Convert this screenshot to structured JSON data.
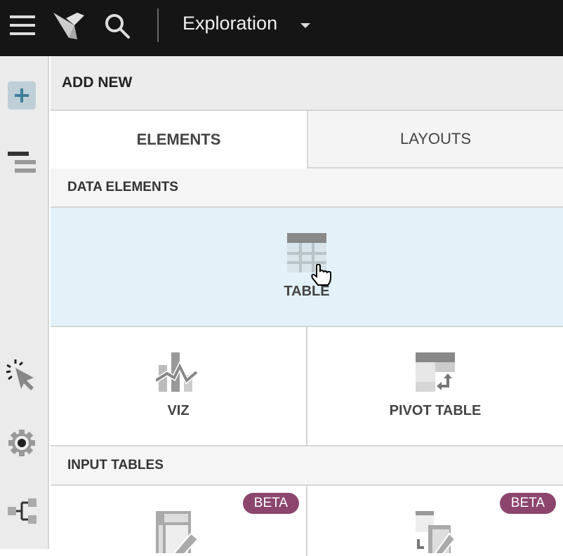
{
  "topbar": {
    "title": "Exploration"
  },
  "panel": {
    "header": "ADD NEW",
    "tabs": [
      {
        "label": "ELEMENTS",
        "active": true
      },
      {
        "label": "LAYOUTS",
        "active": false
      }
    ],
    "sections": [
      {
        "title": "DATA ELEMENTS",
        "items": [
          {
            "label": "TABLE",
            "icon": "table-icon",
            "hovered": true
          },
          {
            "label": "VIZ",
            "icon": "viz-icon"
          },
          {
            "label": "PIVOT TABLE",
            "icon": "pivot-table-icon"
          }
        ]
      },
      {
        "title": "INPUT TABLES",
        "items": [
          {
            "badge": "BETA",
            "icon": "input-table-icon"
          },
          {
            "badge": "BETA",
            "icon": "linked-input-table-icon"
          }
        ]
      }
    ]
  },
  "colors": {
    "topbar": "#151515",
    "hover_tile": "#e3f2f8",
    "beta_badge": "#8c466e",
    "accent": "#3d7e9a"
  }
}
